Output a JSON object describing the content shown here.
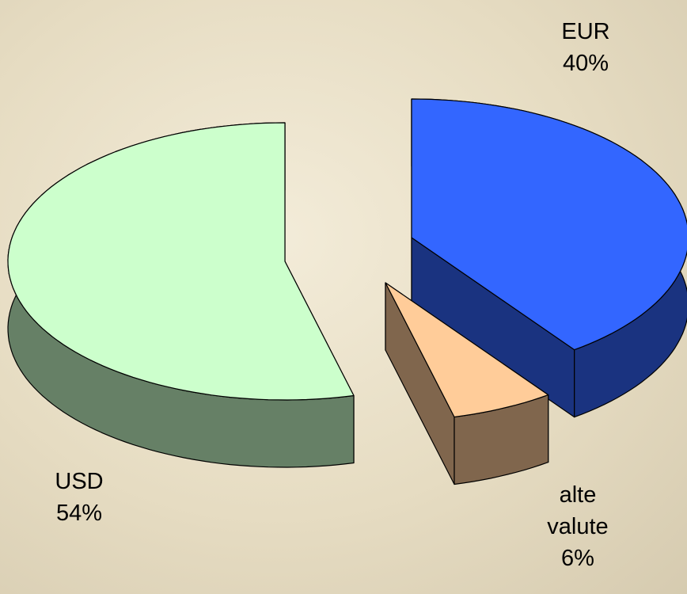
{
  "chart_data": {
    "type": "pie",
    "categories": [
      "EUR",
      "alte valute",
      "USD"
    ],
    "values": [
      40,
      6,
      54
    ],
    "value_labels": [
      "40%",
      "6%",
      "54%"
    ],
    "colors": [
      "#3366ff",
      "#ffcc99",
      "#ccffcc"
    ],
    "three_d": true
  }
}
